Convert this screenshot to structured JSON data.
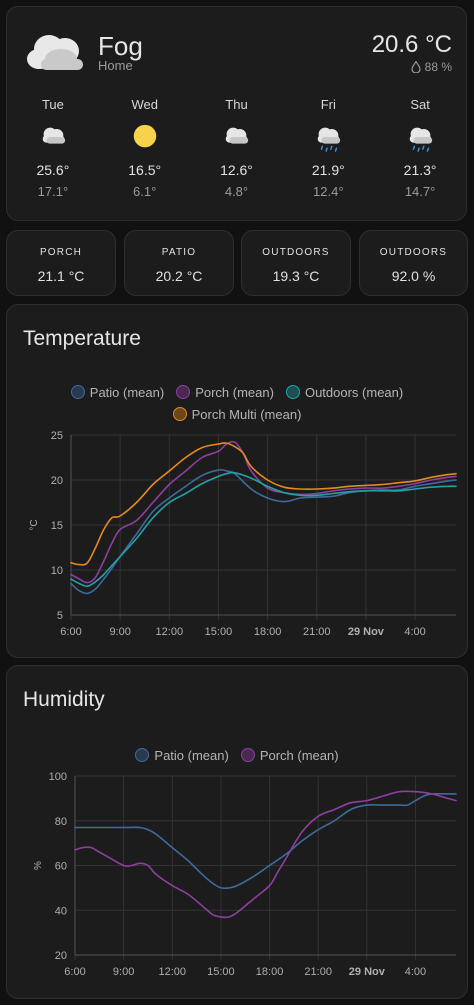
{
  "weather": {
    "condition": "Fog",
    "location": "Home",
    "temperature": "20.6 °C",
    "humidity": "88 %",
    "icon": "cloud-icon",
    "forecast": [
      {
        "day": "Tue",
        "icon": "cloudy-icon",
        "high": "25.6°",
        "low": "17.1°"
      },
      {
        "day": "Wed",
        "icon": "sunny-icon",
        "high": "16.5°",
        "low": "6.1°"
      },
      {
        "day": "Thu",
        "icon": "cloudy-icon",
        "high": "12.6°",
        "low": "4.8°"
      },
      {
        "day": "Fri",
        "icon": "rainy-icon",
        "high": "21.9°",
        "low": "12.4°"
      },
      {
        "day": "Sat",
        "icon": "rainy-icon",
        "high": "21.3°",
        "low": "14.7°"
      }
    ]
  },
  "sensors": [
    {
      "name": "PORCH",
      "value": "21.1 °C"
    },
    {
      "name": "PATIO",
      "value": "20.2 °C"
    },
    {
      "name": "OUTDOORS",
      "value": "19.3 °C"
    },
    {
      "name": "OUTDOORS",
      "value": "92.0 %"
    }
  ],
  "colors": {
    "patio": "#3e6a9e",
    "porch": "#8e3fa0",
    "outdoors": "#1fa3a3",
    "porch_multi": "#e68a1f"
  },
  "chart_data": [
    {
      "type": "line",
      "title": "Temperature",
      "ylabel": "°C",
      "ylim": [
        5,
        25
      ],
      "yticks": [
        5,
        10,
        15,
        20,
        25
      ],
      "xlim": [
        6,
        29.5
      ],
      "xticks": [
        {
          "h": 6,
          "label": "6:00"
        },
        {
          "h": 9,
          "label": "9:00"
        },
        {
          "h": 12,
          "label": "12:00"
        },
        {
          "h": 15,
          "label": "15:00"
        },
        {
          "h": 18,
          "label": "18:00"
        },
        {
          "h": 21,
          "label": "21:00"
        },
        {
          "h": 24,
          "label": "29 Nov",
          "bold": true
        },
        {
          "h": 27,
          "label": "4:00"
        }
      ],
      "series": [
        {
          "name": "Patio (mean)",
          "color": "#3e6a9e",
          "x": [
            6,
            6.5,
            7,
            7.5,
            8,
            8.5,
            9,
            10,
            11,
            12,
            13,
            14,
            15,
            15.5,
            16,
            17,
            18,
            19,
            20,
            21,
            22,
            23,
            24,
            25,
            26,
            27,
            28,
            29,
            29.5
          ],
          "y": [
            8.5,
            7.7,
            7.4,
            7.9,
            9.0,
            10.2,
            11.5,
            14.0,
            16.5,
            18.0,
            19.3,
            20.5,
            21.1,
            21.0,
            20.7,
            19.0,
            18.0,
            17.6,
            18.0,
            18.1,
            18.2,
            18.6,
            18.8,
            18.9,
            18.9,
            19.3,
            19.6,
            19.9,
            20.0
          ]
        },
        {
          "name": "Porch (mean)",
          "color": "#8e3fa0",
          "x": [
            6,
            6.5,
            7,
            7.5,
            8,
            8.5,
            9,
            10,
            11,
            12,
            13,
            14,
            15,
            15.5,
            16,
            16.5,
            17,
            18,
            19,
            20,
            21,
            22,
            23,
            24,
            25,
            26,
            27,
            28,
            29,
            29.5
          ],
          "y": [
            9.5,
            9.0,
            8.6,
            9.2,
            11.0,
            13.0,
            14.5,
            15.5,
            17.5,
            19.5,
            21.0,
            22.5,
            23.2,
            24.0,
            24.2,
            23.0,
            21.0,
            19.1,
            18.6,
            18.4,
            18.5,
            18.8,
            19.0,
            19.1,
            19.1,
            19.3,
            19.6,
            20.0,
            20.3,
            20.4
          ]
        },
        {
          "name": "Outdoors (mean)",
          "color": "#1fa3a3",
          "x": [
            6,
            6.5,
            7,
            7.5,
            8,
            8.5,
            9,
            10,
            11,
            12,
            13,
            14,
            15,
            15.5,
            16,
            17,
            18,
            19,
            20,
            21,
            22,
            23,
            24,
            25,
            26,
            27,
            28,
            29,
            29.5
          ],
          "y": [
            9.0,
            8.5,
            8.2,
            8.7,
            9.5,
            10.5,
            11.5,
            13.5,
            15.8,
            17.5,
            18.5,
            19.6,
            20.4,
            20.7,
            20.8,
            20.2,
            19.3,
            18.6,
            18.3,
            18.3,
            18.5,
            18.7,
            18.8,
            18.8,
            18.8,
            19.0,
            19.2,
            19.3,
            19.3
          ]
        },
        {
          "name": "Porch Multi (mean)",
          "color": "#e68a1f",
          "x": [
            6,
            6.5,
            7,
            7.5,
            8,
            8.5,
            9,
            10,
            11,
            12,
            13,
            14,
            15,
            15.5,
            16,
            16.5,
            17,
            18,
            19,
            20,
            21,
            22,
            23,
            24,
            25,
            26,
            27,
            28,
            29,
            29.5
          ],
          "y": [
            10.8,
            10.6,
            10.8,
            12.5,
            14.5,
            15.8,
            16.0,
            17.5,
            19.5,
            21.0,
            22.5,
            23.6,
            24.0,
            24.1,
            23.7,
            23.0,
            21.5,
            20.0,
            19.2,
            19.0,
            19.0,
            19.1,
            19.3,
            19.4,
            19.5,
            19.7,
            19.9,
            20.3,
            20.6,
            20.7
          ]
        }
      ]
    },
    {
      "type": "line",
      "title": "Humidity",
      "ylabel": "%",
      "ylim": [
        20,
        100
      ],
      "yticks": [
        20,
        40,
        60,
        80,
        100
      ],
      "xlim": [
        6,
        29.5
      ],
      "xticks": [
        {
          "h": 6,
          "label": "6:00"
        },
        {
          "h": 9,
          "label": "9:00"
        },
        {
          "h": 12,
          "label": "12:00"
        },
        {
          "h": 15,
          "label": "15:00"
        },
        {
          "h": 18,
          "label": "18:00"
        },
        {
          "h": 21,
          "label": "21:00"
        },
        {
          "h": 24,
          "label": "29 Nov",
          "bold": true
        },
        {
          "h": 27,
          "label": "4:00"
        }
      ],
      "series": [
        {
          "name": "Patio (mean)",
          "color": "#3e6a9e",
          "x": [
            6,
            7,
            8,
            9,
            10,
            10.5,
            11,
            12,
            13,
            14,
            14.5,
            15,
            15.5,
            16,
            17,
            18,
            19,
            20,
            21,
            22,
            23,
            24,
            25,
            26,
            26.5,
            27,
            27.5,
            28,
            29,
            29.5
          ],
          "y": [
            77,
            77,
            77,
            77,
            77,
            76,
            74,
            68,
            62,
            55,
            52,
            50,
            50,
            51,
            55,
            60,
            65,
            71,
            76,
            80,
            85,
            87,
            87,
            87,
            87,
            89,
            91,
            92,
            92,
            92
          ]
        },
        {
          "name": "Porch (mean)",
          "color": "#8e3fa0",
          "x": [
            6,
            6.5,
            7,
            7.5,
            8,
            9,
            9.5,
            10,
            10.5,
            11,
            12,
            13,
            14,
            14.5,
            15,
            15.5,
            16,
            17,
            18,
            18.5,
            19,
            20,
            21,
            22,
            23,
            24,
            25,
            26,
            27,
            28,
            29,
            29.5
          ],
          "y": [
            67,
            68,
            68,
            66,
            64,
            60,
            60,
            61,
            60,
            56,
            51,
            47,
            41,
            38,
            37,
            37,
            39,
            45,
            51,
            57,
            63,
            75,
            82,
            85,
            88,
            89,
            91,
            93,
            93,
            92,
            90,
            89
          ]
        }
      ]
    }
  ]
}
